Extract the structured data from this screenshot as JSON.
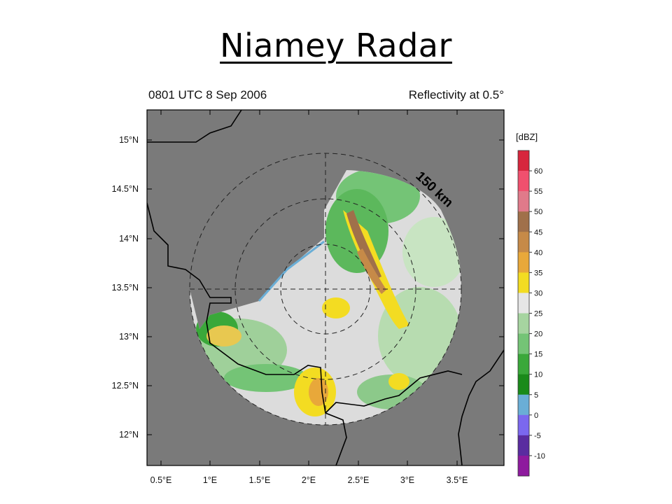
{
  "slide": {
    "title": "Niamey Radar"
  },
  "map": {
    "timestamp": "0801 UTC 8 Sep 2006",
    "product": "Reflectivity at 0.5°",
    "range_ring_label": "150 km",
    "lon_ticks": [
      "0.5°E",
      "1°E",
      "1.5°E",
      "2°E",
      "2.5°E",
      "3°E",
      "3.5°E"
    ],
    "lat_ticks": [
      "15°N",
      "14.5°N",
      "14°N",
      "13.5°N",
      "13°N",
      "12.5°N",
      "12°N"
    ],
    "colorbar": {
      "unit": "[dBZ]",
      "levels": [
        "60",
        "55",
        "50",
        "45",
        "40",
        "35",
        "30",
        "25",
        "20",
        "15",
        "10",
        "5",
        "0",
        "-5",
        "-10"
      ],
      "colors": [
        "#d7263d",
        "#f0506e",
        "#e07a8a",
        "#a0704a",
        "#c68a48",
        "#e8a83a",
        "#f3dc22",
        "#e6e6e6",
        "#a6d4a0",
        "#74c476",
        "#3aa83a",
        "#1a8a1a",
        "#6aaed6",
        "#7b68ee",
        "#5a2ca0",
        "#8e1a9e"
      ]
    },
    "colors": {
      "background": "#7a7a7a",
      "border": "#000000"
    }
  }
}
